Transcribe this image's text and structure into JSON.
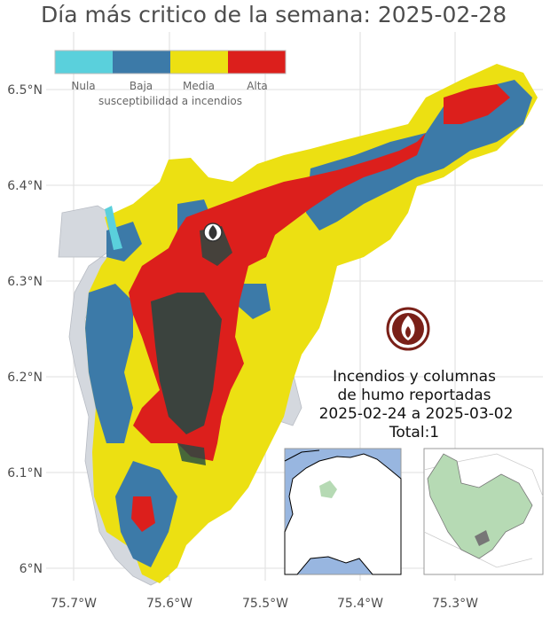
{
  "title": "Día más critico de la semana: 2025-02-28",
  "legend": {
    "title": "susceptibilidad a incendios",
    "items": [
      {
        "label": "Nula",
        "color": "#5ad0dc"
      },
      {
        "label": "Baja",
        "color": "#3c7aa8"
      },
      {
        "label": "Media",
        "color": "#ece012"
      },
      {
        "label": "Alta",
        "color": "#dc1f1c"
      }
    ]
  },
  "axes": {
    "x_ticks": [
      "75.7°W",
      "75.6°W",
      "75.5°W",
      "75.4°W",
      "75.3°W"
    ],
    "y_ticks": [
      "6.5°N",
      "6.4°N",
      "6.3°N",
      "6.2°N",
      "6.1°N",
      "6°N"
    ]
  },
  "annotation": {
    "line1": "Incendios y columnas",
    "line2": "de humo reportadas",
    "line3": "2025-02-24 a 2025-03-02",
    "line4": "Total:1"
  },
  "icons": {
    "fire_marker": "fire-marker-icon",
    "fire_symbol": "fire-symbol-icon"
  },
  "colors": {
    "outside_region": "#d4d8de",
    "water": "#98b6e0",
    "inset_region": "#b6dab4",
    "dark_cells": "#1f4a44"
  }
}
